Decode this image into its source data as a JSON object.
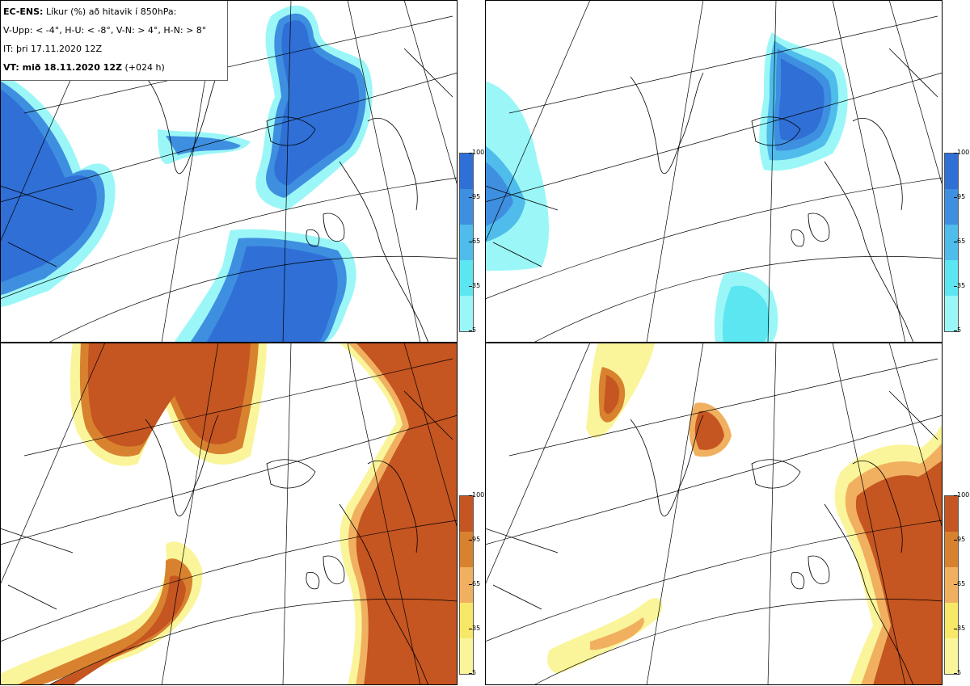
{
  "header": {
    "model": "EC-ENS:",
    "description": "Líkur (%) að hitavik í 850hPa:",
    "thresholds": "V-Upp: < -4°, H-U: < -8°, V-N: > 4°, H-N: > 8°",
    "it_label": "IT: þri 17.11.2020 12Z",
    "vt_label": "VT: mið 18.11.2020 12Z",
    "lead": "(+024 h)"
  },
  "legend": {
    "ticks": [
      "100",
      "95",
      "65",
      "35",
      "5"
    ],
    "cold_colors": [
      "#9BF7F7",
      "#5CE6F2",
      "#4FBCEB",
      "#3E8FE0",
      "#2F6FD6"
    ],
    "warm_colors": [
      "#FAF59A",
      "#F8E868",
      "#F0B060",
      "#D8822F",
      "#C55521"
    ]
  },
  "panels": [
    {
      "id": "top-left",
      "variable": "V-Upp"
    },
    {
      "id": "top-right",
      "variable": "H-U"
    },
    {
      "id": "bottom-left",
      "variable": "V-N"
    },
    {
      "id": "bottom-right",
      "variable": "H-N"
    }
  ]
}
